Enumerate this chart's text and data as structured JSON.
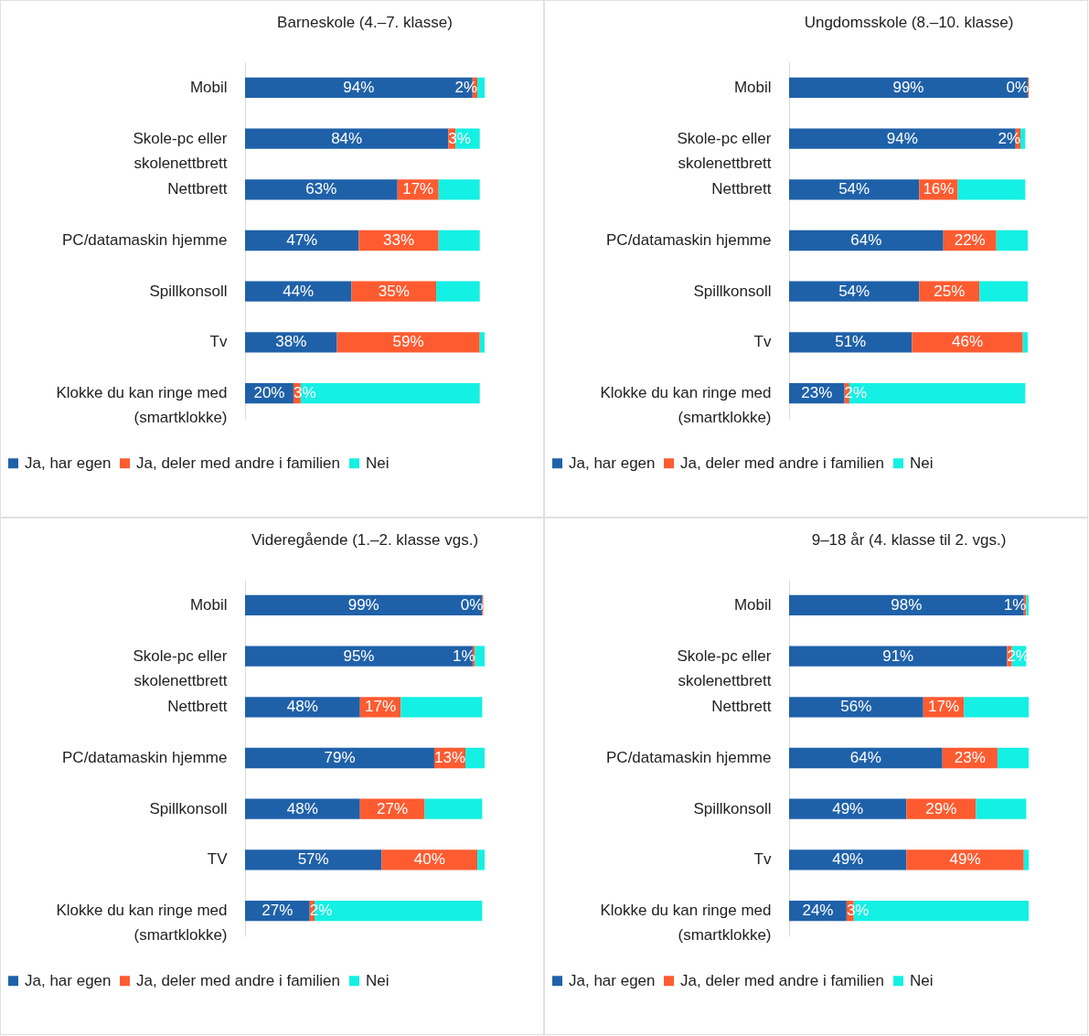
{
  "chart_data": [
    {
      "type": "bar",
      "orientation": "horizontal",
      "stacked": true,
      "legend": "bottom",
      "title": "Barneskole (4.–7. klasse)",
      "categories": [
        "Mobil",
        "Skole-pc eller skolenettbrett",
        "Nettbrett",
        "PC/datamaskin hjemme",
        "Spillkonsoll",
        "Tv",
        "Klokke du kan ringe med (smartklokke)"
      ],
      "series": [
        {
          "name": "Ja, har egen",
          "color": "#1f61a9",
          "values": [
            94,
            84,
            63,
            47,
            44,
            38,
            20
          ],
          "value_labels": [
            "94%",
            "84%",
            "63%",
            "47%",
            "44%",
            "38%",
            "20%"
          ]
        },
        {
          "name": "Ja, deler med andre i familien",
          "color": "#ff5b31",
          "values": [
            2,
            3,
            17,
            33,
            35,
            59,
            3
          ],
          "value_labels": [
            "2%",
            "3%",
            "17%",
            "33%",
            "35%",
            "59%",
            "3%"
          ]
        },
        {
          "name": "Nei",
          "color": "#14f0e3",
          "values": [
            3,
            10,
            17,
            17,
            18,
            2,
            74
          ]
        }
      ]
    },
    {
      "type": "bar",
      "orientation": "horizontal",
      "stacked": true,
      "legend": "bottom",
      "title": "Ungdomsskole (8.–10. klasse)",
      "categories": [
        "Mobil",
        "Skole-pc eller skolenettbrett",
        "Nettbrett",
        "PC/datamaskin hjemme",
        "Spillkonsoll",
        "Tv",
        "Klokke du kan ringe med (smartklokke)"
      ],
      "series": [
        {
          "name": "Ja, har egen",
          "color": "#1f61a9",
          "values": [
            99,
            94,
            54,
            64,
            54,
            51,
            23
          ],
          "value_labels": [
            "99%",
            "94%",
            "54%",
            "64%",
            "54%",
            "51%",
            "23%"
          ]
        },
        {
          "name": "Ja, deler med andre i familien",
          "color": "#ff5b31",
          "values": [
            0.4,
            2,
            16,
            22,
            25,
            46,
            2
          ],
          "value_labels": [
            "0%",
            "2%",
            "16%",
            "22%",
            "25%",
            "46%",
            "2%"
          ]
        },
        {
          "name": "Nei",
          "color": "#14f0e3",
          "values": [
            0,
            2,
            28,
            13,
            20,
            2,
            73
          ]
        }
      ]
    },
    {
      "type": "bar",
      "orientation": "horizontal",
      "stacked": true,
      "legend": "bottom",
      "title": "Videregående (1.–2. klasse vgs.)",
      "categories": [
        "Mobil",
        "Skole-pc eller skolenettbrett",
        "Nettbrett",
        "PC/datamaskin hjemme",
        "Spillkonsoll",
        "TV",
        "Klokke du kan ringe med (smartklokke)"
      ],
      "series": [
        {
          "name": "Ja, har egen",
          "color": "#1f61a9",
          "values": [
            99,
            95,
            48,
            79,
            48,
            57,
            27
          ],
          "value_labels": [
            "99%",
            "95%",
            "48%",
            "79%",
            "48%",
            "57%",
            "27%"
          ]
        },
        {
          "name": "Ja, deler med andre i familien",
          "color": "#ff5b31",
          "values": [
            0.4,
            1,
            17,
            13,
            27,
            40,
            2
          ],
          "value_labels": [
            "0%",
            "1%",
            "17%",
            "13%",
            "27%",
            "40%",
            "2%"
          ]
        },
        {
          "name": "Nei",
          "color": "#14f0e3",
          "values": [
            0,
            4,
            34,
            8,
            24,
            3,
            70
          ]
        }
      ]
    },
    {
      "type": "bar",
      "orientation": "horizontal",
      "stacked": true,
      "legend": "bottom",
      "title": "9–18 år (4. klasse til 2. vgs.)",
      "categories": [
        "Mobil",
        "Skole-pc eller skolenettbrett",
        "Nettbrett",
        "PC/datamaskin hjemme",
        "Spillkonsoll",
        "Tv",
        "Klokke du kan ringe med (smartklokke)"
      ],
      "series": [
        {
          "name": "Ja, har egen",
          "color": "#1f61a9",
          "values": [
            98,
            91,
            56,
            64,
            49,
            49,
            24
          ],
          "value_labels": [
            "98%",
            "91%",
            "56%",
            "64%",
            "49%",
            "49%",
            "24%"
          ]
        },
        {
          "name": "Ja, deler med andre i familien",
          "color": "#ff5b31",
          "values": [
            1,
            2,
            17,
            23,
            29,
            49,
            3
          ],
          "value_labels": [
            "1%",
            "2%",
            "17%",
            "23%",
            "29%",
            "49%",
            "3%"
          ]
        },
        {
          "name": "Nei",
          "color": "#14f0e3",
          "values": [
            1,
            6,
            27,
            13,
            21,
            2,
            73
          ]
        }
      ]
    }
  ]
}
